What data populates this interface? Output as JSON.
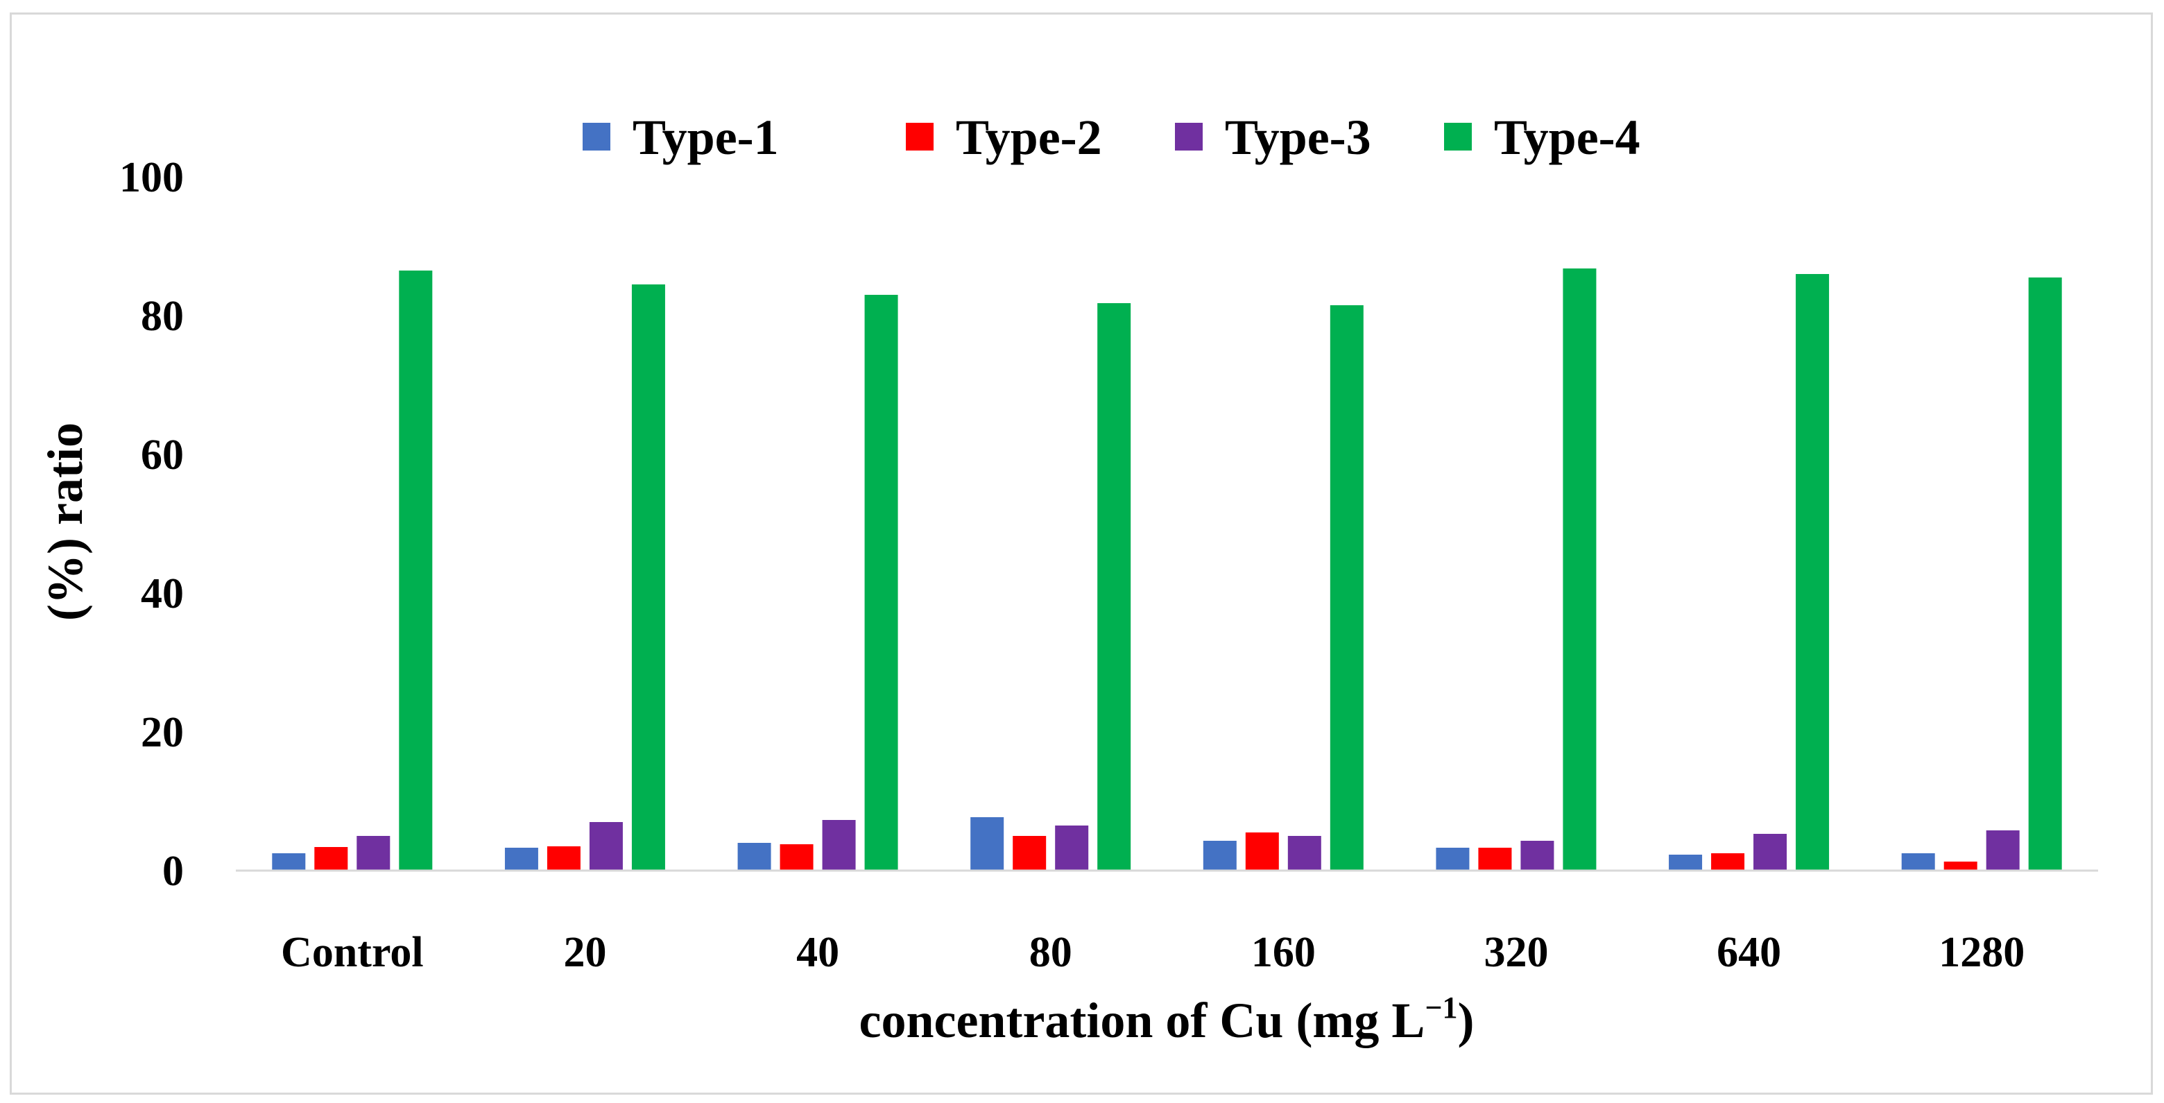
{
  "chart_data": {
    "type": "bar",
    "title": "",
    "xlabel": "concentration of Cu (mg L",
    "xlabel_superscript": "−1",
    "xlabel_close": ")",
    "ylabel": "(%) ratio",
    "ylim": [
      0,
      100
    ],
    "yticks": [
      "0",
      "20",
      "40",
      "60",
      "80",
      "100"
    ],
    "grid": false,
    "legend_position": "top-center",
    "categories": [
      "Control",
      "20",
      "40",
      "80",
      "160",
      "320",
      "640",
      "1280"
    ],
    "series": [
      {
        "name": "Type-1",
        "color": "#4472c4",
        "values": [
          2.5,
          3.3,
          4.0,
          7.7,
          4.3,
          3.3,
          2.3,
          2.5
        ]
      },
      {
        "name": "Type-2",
        "color": "#ff0000",
        "values": [
          3.4,
          3.5,
          3.8,
          5.0,
          5.5,
          3.3,
          2.5,
          1.3
        ]
      },
      {
        "name": "Type-3",
        "color": "#7030a0",
        "values": [
          5.0,
          7.0,
          7.3,
          6.5,
          5.0,
          4.3,
          5.3,
          5.8
        ]
      },
      {
        "name": "Type-4",
        "color": "#00b050",
        "values": [
          86.5,
          84.5,
          83.0,
          81.8,
          81.5,
          86.8,
          86.0,
          85.5
        ]
      }
    ]
  }
}
